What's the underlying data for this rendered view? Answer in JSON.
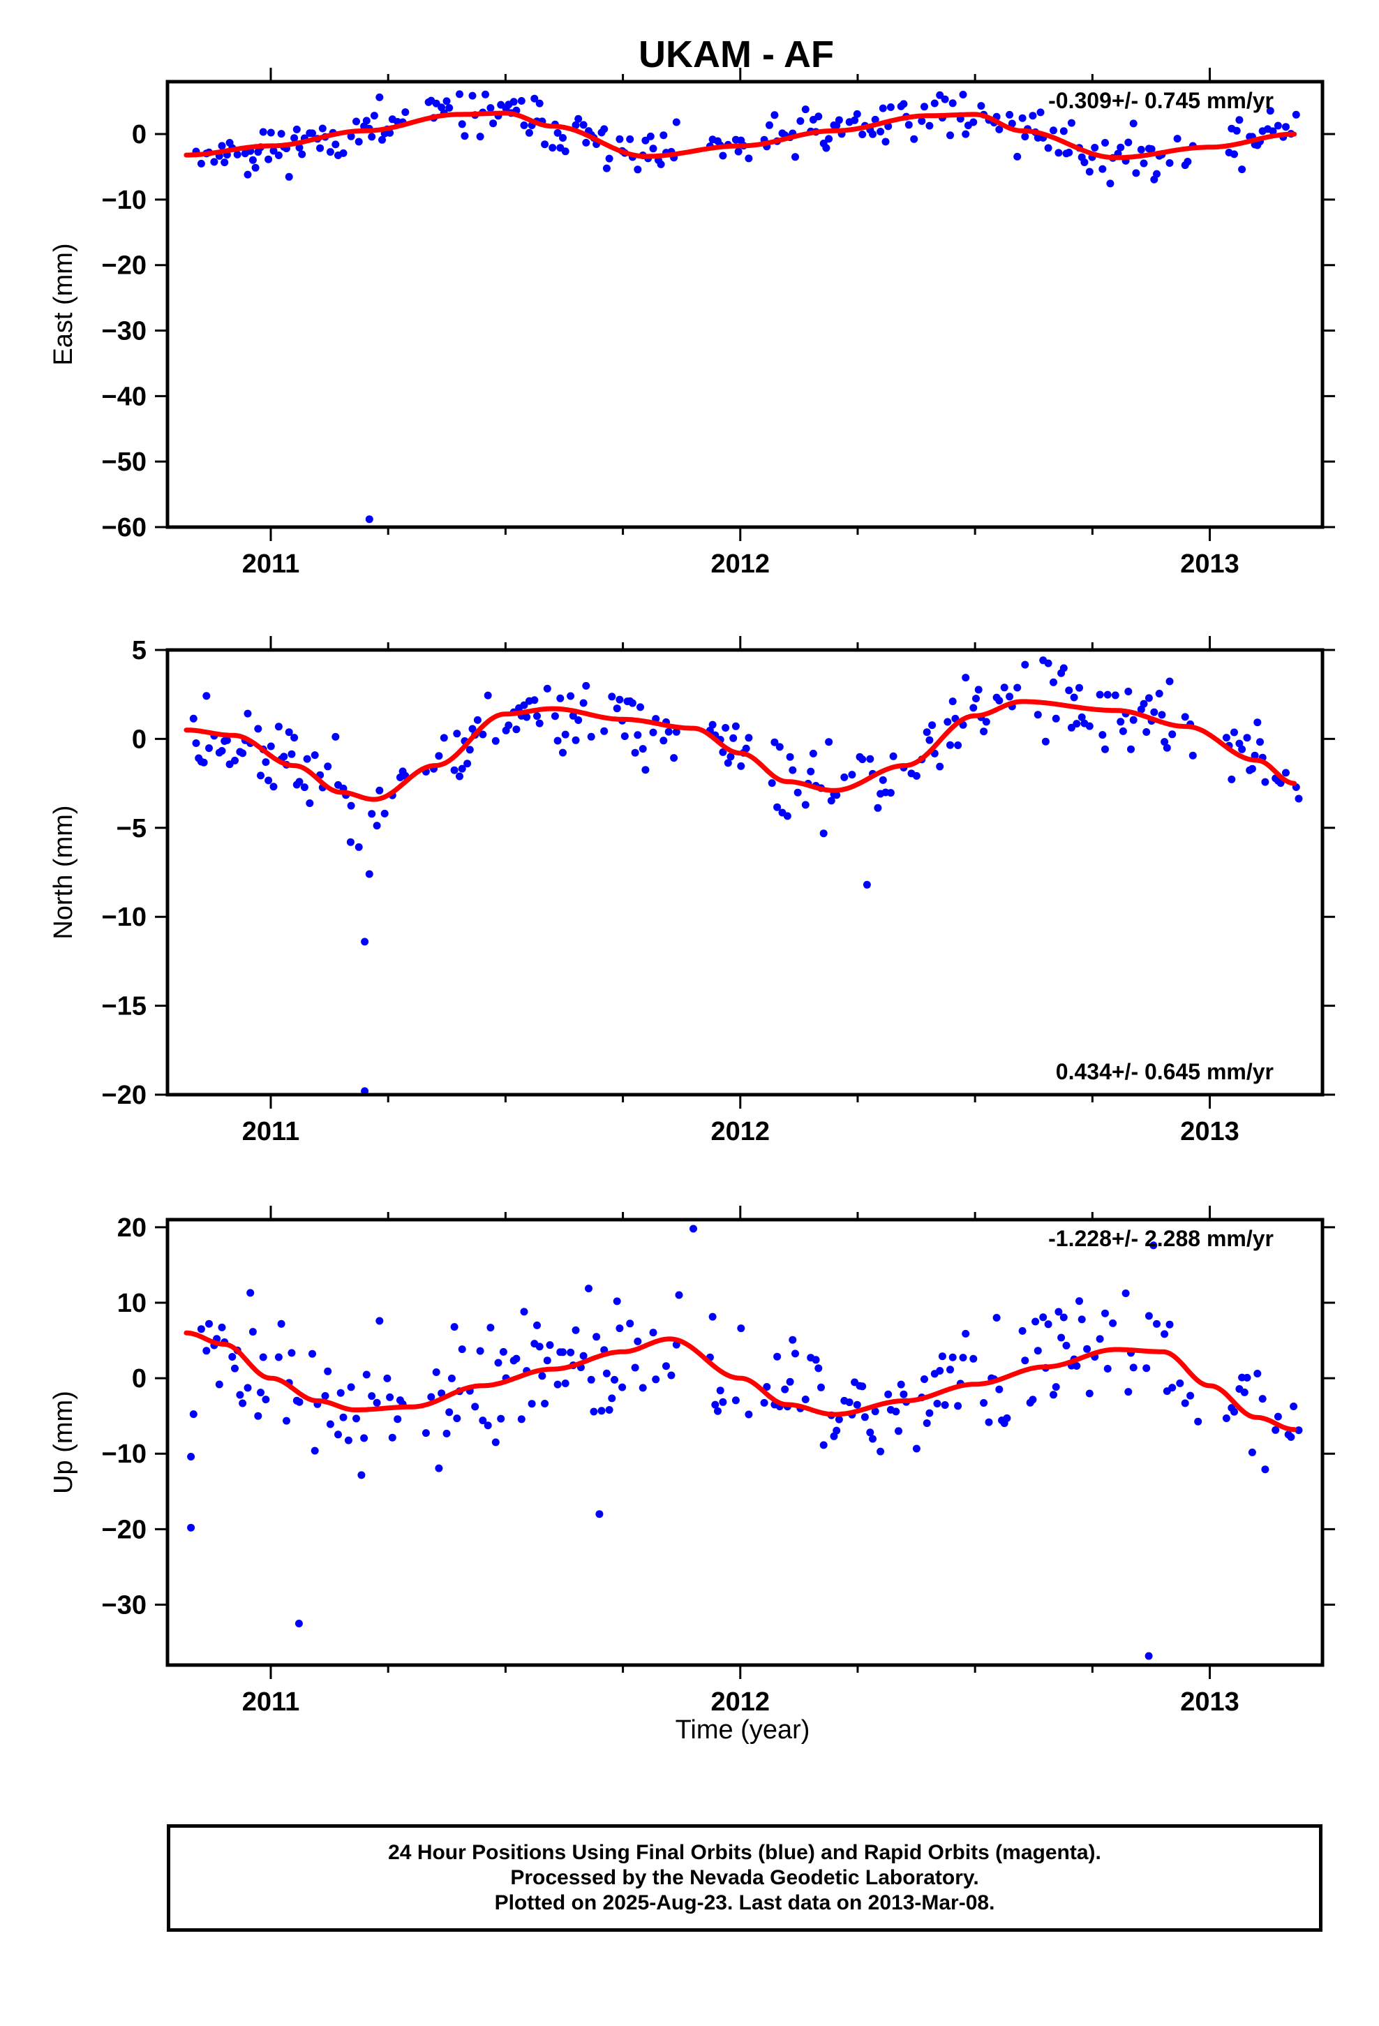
{
  "title": "UKAM - AF",
  "x_axis_label": "Time (year)",
  "caption": {
    "line1": "24 Hour Positions Using Final Orbits (blue) and Rapid Orbits (magenta).",
    "line2": "Processed by the Nevada Geodetic Laboratory.",
    "line3": "Plotted on 2025-Aug-23. Last data on 2013-Mar-08."
  },
  "colors": {
    "points": "#0000ff",
    "fit": "#ff0000",
    "axes": "#000000"
  },
  "chart_data": [
    {
      "type": "scatter",
      "ylabel": "East (mm)",
      "rate": "-0.309+/- 0.745 mm/yr",
      "rate_position": "top-right",
      "xlim": [
        2010.78,
        2013.24
      ],
      "ylim": [
        -60,
        8
      ],
      "xticks": [
        2011,
        2012,
        2013
      ],
      "yticks": [
        0,
        -10,
        -20,
        -30,
        -40,
        -50,
        -60
      ],
      "fit": {
        "x": [
          2010.82,
          2011.0,
          2011.2,
          2011.4,
          2011.5,
          2011.6,
          2011.8,
          2012.0,
          2012.2,
          2012.4,
          2012.5,
          2012.6,
          2012.8,
          2013.0,
          2013.18
        ],
        "y": [
          -3.2,
          -1.8,
          0.5,
          3.0,
          3.2,
          1.2,
          -3.4,
          -1.8,
          0.5,
          2.8,
          3.0,
          0.5,
          -3.6,
          -2.0,
          0.0
        ]
      },
      "outliers": [
        {
          "x": 2011.21,
          "y": -58.8
        }
      ],
      "noise": 1.8,
      "seed": 11
    },
    {
      "type": "scatter",
      "ylabel": "North (mm)",
      "rate": "0.434+/- 0.645 mm/yr",
      "rate_position": "bottom-right",
      "xlim": [
        2010.78,
        2013.24
      ],
      "ylim": [
        -20,
        5
      ],
      "xticks": [
        2011,
        2012,
        2013
      ],
      "yticks": [
        5,
        0,
        -5,
        -10,
        -15,
        -20
      ],
      "fit": {
        "x": [
          2010.82,
          2010.92,
          2011.05,
          2011.15,
          2011.22,
          2011.35,
          2011.5,
          2011.6,
          2011.75,
          2011.9,
          2012.0,
          2012.1,
          2012.2,
          2012.35,
          2012.5,
          2012.6,
          2012.8,
          2012.95,
          2013.1,
          2013.18
        ],
        "y": [
          0.5,
          0.2,
          -1.5,
          -3.0,
          -3.4,
          -1.5,
          1.4,
          1.7,
          1.1,
          0.6,
          -0.8,
          -2.4,
          -2.9,
          -1.5,
          1.3,
          2.1,
          1.6,
          0.7,
          -1.2,
          -2.5
        ]
      },
      "outliers": [
        {
          "x": 2011.2,
          "y": -19.8
        },
        {
          "x": 2011.2,
          "y": -11.4
        },
        {
          "x": 2011.21,
          "y": -7.6
        },
        {
          "x": 2012.27,
          "y": -8.2
        },
        {
          "x": 2011.17,
          "y": -5.8
        }
      ],
      "noise": 1.1,
      "seed": 23
    },
    {
      "type": "scatter",
      "ylabel": "Up (mm)",
      "rate": "-1.228+/- 2.288 mm/yr",
      "rate_position": "top-right",
      "xlim": [
        2010.78,
        2013.24
      ],
      "ylim": [
        -38,
        21
      ],
      "xticks": [
        2011,
        2012,
        2013
      ],
      "yticks": [
        20,
        10,
        0,
        -10,
        -20,
        -30
      ],
      "fit": {
        "x": [
          2010.82,
          2010.9,
          2011.0,
          2011.1,
          2011.18,
          2011.3,
          2011.45,
          2011.6,
          2011.75,
          2011.85,
          2012.0,
          2012.1,
          2012.2,
          2012.35,
          2012.5,
          2012.65,
          2012.8,
          2012.9,
          2013.0,
          2013.1,
          2013.18
        ],
        "y": [
          6.0,
          4.5,
          0.0,
          -3.0,
          -4.2,
          -3.8,
          -1.0,
          1.2,
          3.5,
          5.2,
          0.0,
          -3.5,
          -4.8,
          -3.0,
          -0.8,
          1.5,
          3.8,
          3.5,
          -1.0,
          -5.2,
          -6.8
        ]
      },
      "outliers": [
        {
          "x": 2011.06,
          "y": -32.5
        },
        {
          "x": 2012.87,
          "y": -36.8
        },
        {
          "x": 2011.9,
          "y": 19.8
        },
        {
          "x": 2010.83,
          "y": -19.8
        },
        {
          "x": 2010.83,
          "y": -10.4
        },
        {
          "x": 2011.7,
          "y": -18.0
        },
        {
          "x": 2012.88,
          "y": 17.6
        }
      ],
      "noise": 4.2,
      "seed": 37
    }
  ]
}
